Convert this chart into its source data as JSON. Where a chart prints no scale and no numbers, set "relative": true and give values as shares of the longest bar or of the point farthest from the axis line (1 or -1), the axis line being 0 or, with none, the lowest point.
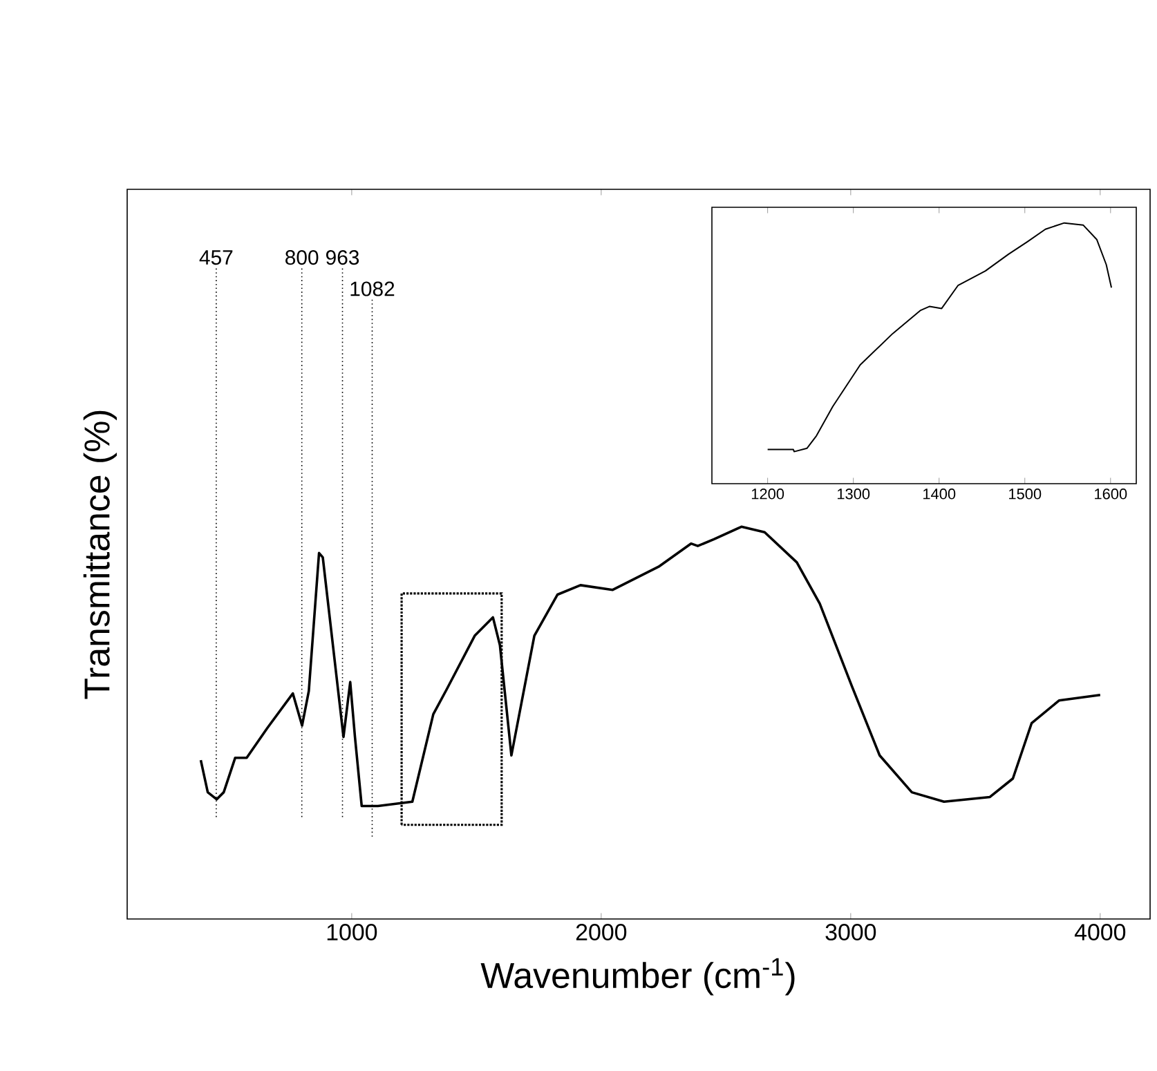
{
  "chart_data": [
    {
      "type": "line",
      "xlabel": "Wavenumber (cm$^{-1}$)",
      "ylabel": "Transmittance (%)",
      "relative": true,
      "tick_labels": "x",
      "color": "#000000",
      "xlim": [
        100,
        4200
      ],
      "xticks": [
        1000,
        2000,
        3000,
        4000
      ],
      "x": [
        395,
        423,
        459,
        487,
        533,
        579,
        662,
        764,
        801,
        828,
        869,
        884,
        967,
        994,
        1013,
        1040,
        1105,
        1243,
        1327,
        1382,
        1493,
        1566,
        1594,
        1640,
        1732,
        1825,
        1917,
        2046,
        2230,
        2360,
        2387,
        2452,
        2562,
        2655,
        2784,
        2876,
        3005,
        3116,
        3245,
        3374,
        3558,
        3650,
        3725,
        3835,
        4000
      ],
      "values": [
        0.405,
        0.323,
        0.305,
        0.323,
        0.411,
        0.411,
        0.487,
        0.575,
        0.493,
        0.581,
        0.933,
        0.922,
        0.464,
        0.604,
        0.464,
        0.288,
        0.288,
        0.299,
        0.522,
        0.587,
        0.722,
        0.769,
        0.698,
        0.417,
        0.722,
        0.827,
        0.851,
        0.839,
        0.898,
        0.957,
        0.951,
        0.968,
        1.0,
        0.986,
        0.909,
        0.804,
        0.593,
        0.417,
        0.323,
        0.299,
        0.311,
        0.358,
        0.499,
        0.557,
        0.571
      ],
      "ref_lines": [
        {
          "axis": "x",
          "value": 457,
          "label": "457",
          "line_style": "dotted"
        },
        {
          "axis": "x",
          "value": 800,
          "label": "800",
          "line_style": "dotted"
        },
        {
          "axis": "x",
          "value": 963,
          "label": "963",
          "line_style": "dotted"
        },
        {
          "axis": "x",
          "value": 1082,
          "label": "1082",
          "line_style": "dotted"
        }
      ]
    },
    {
      "type": "line",
      "relative": true,
      "tick_labels": "x",
      "color": "#000000",
      "xlim": [
        1135,
        1630
      ],
      "xticks": [
        1200,
        1300,
        1400,
        1500,
        1600
      ],
      "x": [
        1200,
        1230,
        1231,
        1246,
        1257,
        1276,
        1308,
        1346,
        1378,
        1389,
        1403,
        1422,
        1454,
        1481,
        1503,
        1524,
        1546,
        1568,
        1584,
        1595,
        1601
      ],
      "values": [
        0.131,
        0.131,
        0.123,
        0.136,
        0.184,
        0.296,
        0.456,
        0.576,
        0.664,
        0.68,
        0.672,
        0.76,
        0.816,
        0.88,
        0.928,
        0.976,
        1.0,
        0.992,
        0.936,
        0.84,
        0.752
      ]
    }
  ]
}
